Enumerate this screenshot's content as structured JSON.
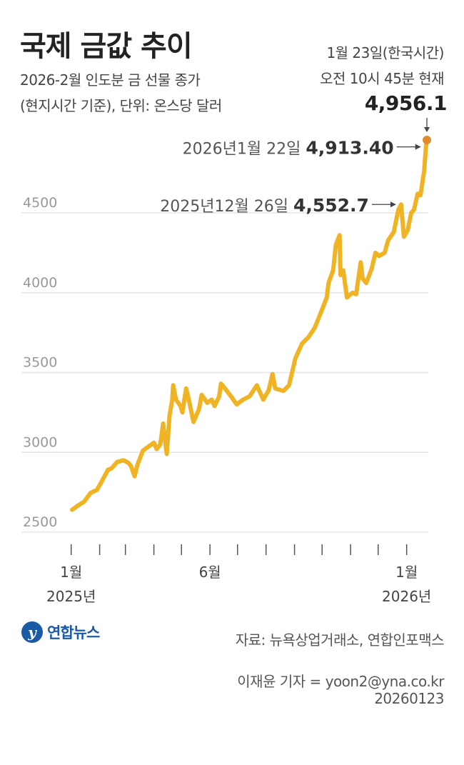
{
  "header": {
    "title": "국제 금값 추이",
    "subtitle_line1": "2026-2월 인도분 금 선물 종가",
    "subtitle_line2": "(현지시간 기준), 단위: 온스당 달러",
    "asof_line1": "1월 23일(한국시간)",
    "asof_line2": "오전 10시 45분 현재",
    "latest_value": "4,956.1"
  },
  "colors": {
    "line": "#f0b323",
    "marker": "#e08a2c",
    "grid": "#e5e5e5",
    "text": "#333333"
  },
  "chart_data": {
    "type": "line",
    "title": "국제 금값 추이",
    "ylim": [
      2500,
      5000
    ],
    "yticks": [
      "2500",
      "3000",
      "3500",
      "4000",
      "4500"
    ],
    "grid": true,
    "xaxis": {
      "start": "2025-01-02",
      "end": "2026-01-23",
      "labels": [
        {
          "date": "2025-01-01",
          "month": "1월",
          "year": "2025년"
        },
        {
          "date": "2025-06-01",
          "month": "6월",
          "year": ""
        },
        {
          "date": "2026-01-01",
          "month": "1월",
          "year": "2026년"
        }
      ]
    },
    "series": [
      {
        "values": [
          [
            "2025-01-02",
            2640
          ],
          [
            "2025-01-08",
            2665
          ],
          [
            "2025-01-15",
            2690
          ],
          [
            "2025-01-22",
            2745
          ],
          [
            "2025-01-29",
            2765
          ],
          [
            "2025-02-03",
            2815
          ],
          [
            "2025-02-10",
            2890
          ],
          [
            "2025-02-14",
            2900
          ],
          [
            "2025-02-20",
            2940
          ],
          [
            "2025-02-27",
            2950
          ],
          [
            "2025-03-04",
            2935
          ],
          [
            "2025-03-07",
            2915
          ],
          [
            "2025-03-11",
            2850
          ],
          [
            "2025-03-14",
            2920
          ],
          [
            "2025-03-20",
            3010
          ],
          [
            "2025-03-27",
            3040
          ],
          [
            "2025-04-01",
            3060
          ],
          [
            "2025-04-04",
            3020
          ],
          [
            "2025-04-08",
            3050
          ],
          [
            "2025-04-11",
            3180
          ],
          [
            "2025-04-15",
            2990
          ],
          [
            "2025-04-18",
            3230
          ],
          [
            "2025-04-21",
            3330
          ],
          [
            "2025-04-22",
            3420
          ],
          [
            "2025-04-25",
            3330
          ],
          [
            "2025-04-30",
            3290
          ],
          [
            "2025-05-02",
            3250
          ],
          [
            "2025-05-06",
            3400
          ],
          [
            "2025-05-09",
            3330
          ],
          [
            "2025-05-14",
            3190
          ],
          [
            "2025-05-20",
            3270
          ],
          [
            "2025-05-23",
            3360
          ],
          [
            "2025-05-29",
            3310
          ],
          [
            "2025-06-03",
            3330
          ],
          [
            "2025-06-06",
            3290
          ],
          [
            "2025-06-11",
            3350
          ],
          [
            "2025-06-13",
            3430
          ],
          [
            "2025-06-18",
            3395
          ],
          [
            "2025-06-24",
            3350
          ],
          [
            "2025-06-30",
            3300
          ],
          [
            "2025-07-07",
            3330
          ],
          [
            "2025-07-14",
            3350
          ],
          [
            "2025-07-22",
            3420
          ],
          [
            "2025-07-29",
            3330
          ],
          [
            "2025-08-04",
            3390
          ],
          [
            "2025-08-08",
            3490
          ],
          [
            "2025-08-11",
            3400
          ],
          [
            "2025-08-20",
            3385
          ],
          [
            "2025-08-26",
            3420
          ],
          [
            "2025-09-02",
            3590
          ],
          [
            "2025-09-09",
            3680
          ],
          [
            "2025-09-16",
            3720
          ],
          [
            "2025-09-23",
            3780
          ],
          [
            "2025-09-30",
            3880
          ],
          [
            "2025-10-06",
            3970
          ],
          [
            "2025-10-08",
            4060
          ],
          [
            "2025-10-13",
            4140
          ],
          [
            "2025-10-16",
            4300
          ],
          [
            "2025-10-20",
            4360
          ],
          [
            "2025-10-21",
            4110
          ],
          [
            "2025-10-24",
            4140
          ],
          [
            "2025-10-28",
            3970
          ],
          [
            "2025-11-03",
            4000
          ],
          [
            "2025-11-07",
            3990
          ],
          [
            "2025-11-12",
            4190
          ],
          [
            "2025-11-14",
            4090
          ],
          [
            "2025-11-18",
            4060
          ],
          [
            "2025-11-24",
            4150
          ],
          [
            "2025-11-28",
            4250
          ],
          [
            "2025-12-02",
            4230
          ],
          [
            "2025-12-08",
            4250
          ],
          [
            "2025-12-12",
            4330
          ],
          [
            "2025-12-18",
            4380
          ],
          [
            "2025-12-23",
            4520
          ],
          [
            "2025-12-26",
            4552.7
          ],
          [
            "2025-12-29",
            4350
          ],
          [
            "2026-01-02",
            4390
          ],
          [
            "2026-01-06",
            4500
          ],
          [
            "2026-01-09",
            4520
          ],
          [
            "2026-01-13",
            4620
          ],
          [
            "2026-01-16",
            4610
          ],
          [
            "2026-01-20",
            4760
          ],
          [
            "2026-01-22",
            4913.4
          ],
          [
            "2026-01-23",
            4956.1
          ]
        ]
      }
    ],
    "annotations": [
      {
        "date_text": "2026년1월 22일",
        "value_text": "4,913.40",
        "x": "2026-01-22",
        "y": 4913.4
      },
      {
        "date_text": "2025년12월 26일",
        "value_text": "4,552.7",
        "x": "2025-12-26",
        "y": 4552.7
      }
    ]
  },
  "footer": {
    "logo_text": "연합뉴스",
    "source": "자료: 뉴욕상업거래소, 연합인포맥스",
    "reporter": "이재윤 기자 = yoon2@yna.co.kr",
    "date_code": "20260123"
  }
}
